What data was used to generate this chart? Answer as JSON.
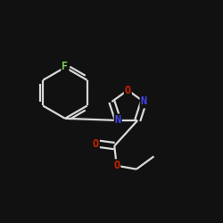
{
  "background_color": "#111111",
  "bond_color": "#d8d8d8",
  "atom_colors": {
    "F": "#7ccd50",
    "N": "#4444ee",
    "O": "#cc2200",
    "C": "#d8d8d8"
  },
  "bond_width": 1.6,
  "font_size_atom": 8.5,
  "figsize": [
    2.5,
    2.5
  ],
  "dpi": 100
}
